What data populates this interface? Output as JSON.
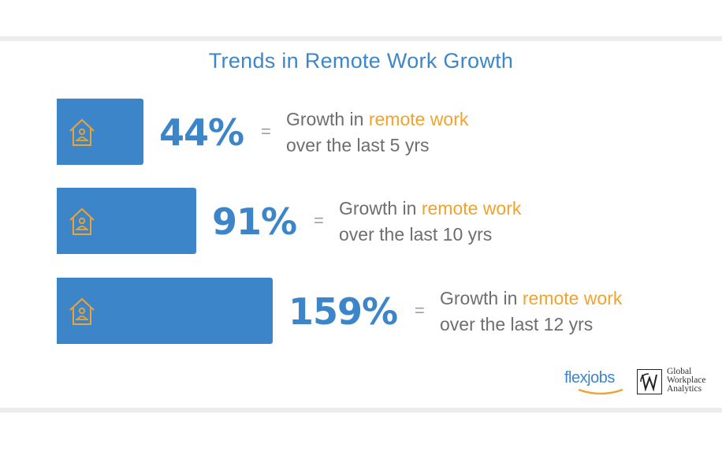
{
  "title": "Trends in Remote Work Growth",
  "colors": {
    "accent": "#3d85c9",
    "highlight": "#f0a32e",
    "text": "#6e6e6e"
  },
  "chart_data": {
    "type": "bar",
    "orientation": "horizontal",
    "title": "Trends in Remote Work Growth",
    "categories": [
      "over the last 5 yrs",
      "over the last 10 yrs",
      "over the last 12 yrs"
    ],
    "values": [
      44,
      91,
      159
    ],
    "unit": "%",
    "grid": false,
    "rows": [
      {
        "value": 44,
        "label": "44%",
        "equals": "=",
        "desc_prefix": "Growth in ",
        "desc_highlight": "remote work",
        "desc_line2": "over the last 5 yrs",
        "icon": "home-office-icon"
      },
      {
        "value": 91,
        "label": "91%",
        "equals": "=",
        "desc_prefix": "Growth in ",
        "desc_highlight": "remote work",
        "desc_line2": "over the last 10 yrs",
        "icon": "home-office-icon"
      },
      {
        "value": 159,
        "label": "159%",
        "equals": "=",
        "desc_prefix": "Growth in ",
        "desc_highlight": "remote work",
        "desc_line2": "over the last 12 yrs",
        "icon": "home-office-icon"
      }
    ]
  },
  "logos": {
    "flexjobs": {
      "text_a": "flex",
      "text_b": "jobs"
    },
    "gwa": {
      "mark": "GWA",
      "line1": "Global",
      "line2": "Workplace",
      "line3": "Analytics"
    }
  }
}
